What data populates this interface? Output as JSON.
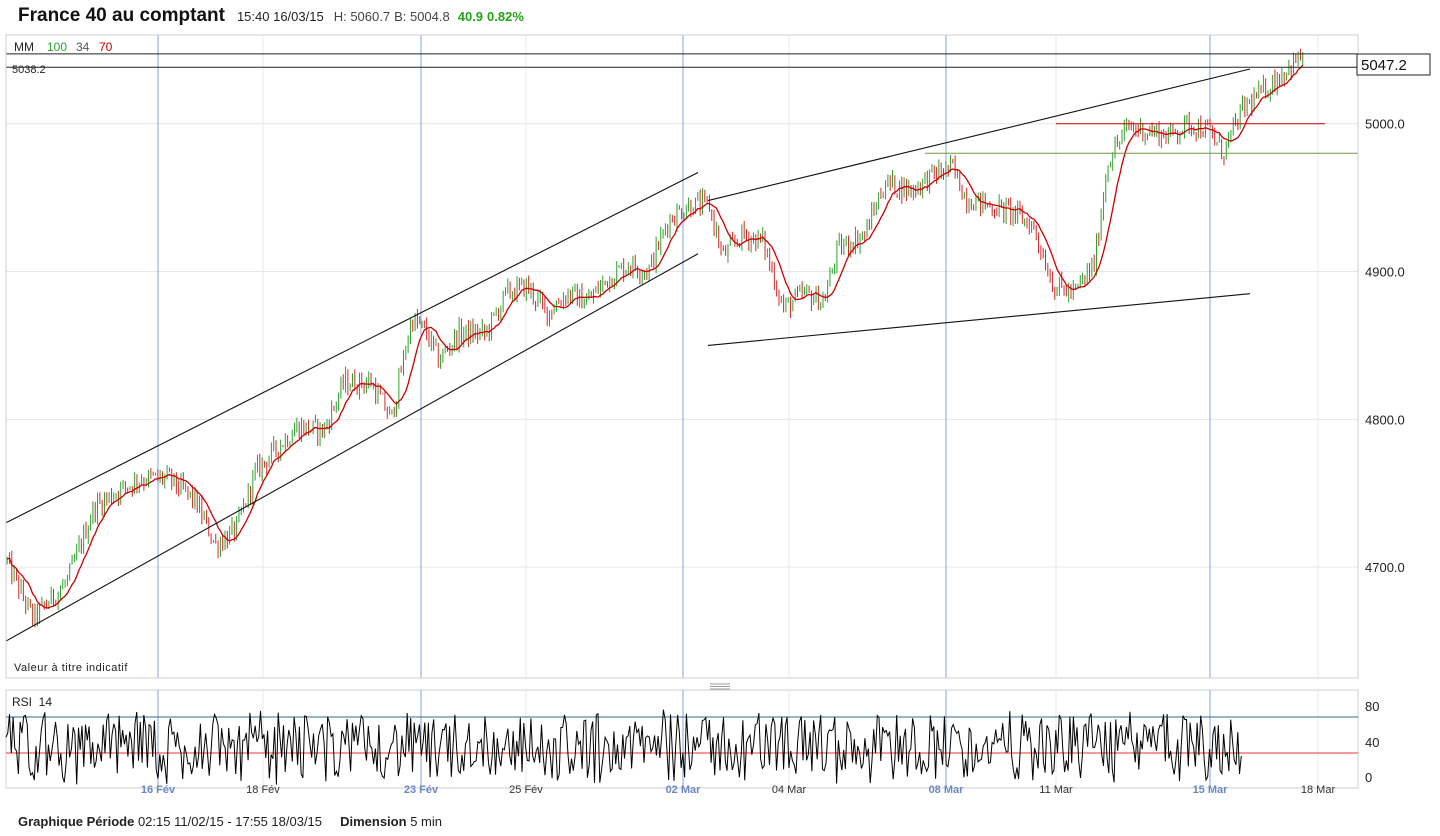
{
  "header": {
    "title": "France 40 au comptant",
    "datetime": "15:40 16/03/15",
    "high": "H: 5060.7",
    "bid": "B: 5004.8",
    "change": "40.9",
    "change_pct": "0.82%"
  },
  "legend": {
    "label": "MM",
    "p1": "100",
    "p2": "34",
    "p3": "70"
  },
  "level_labels": {
    "left_box": "5038.2",
    "right_box": "5047.2"
  },
  "watermark": "Valeur à titre indicatif",
  "rsi_label": "RSI  14",
  "footer": {
    "periode_label": "Graphique Période",
    "periode_value": "02:15 11/02/15 - 17:55 18/03/15",
    "dimension_label": "Dimension",
    "dimension_value": "5 min"
  },
  "colors": {
    "up": "#2ca02c",
    "down": "#d62728",
    "ma": "#cc0000",
    "grid_major": "#8aa4cf",
    "rsi_upper": "#2f6f8f",
    "rsi_lower": "#ee3333"
  },
  "chart_data": [
    {
      "type": "candlestick",
      "title": "France 40 au comptant",
      "y_ticks": [
        4700.0,
        4800.0,
        4900.0,
        5000.0
      ],
      "ylim": [
        4625,
        5060
      ],
      "x_ticks": [
        "16 Fév",
        "18 Fév",
        "23 Fév",
        "25 Fév",
        "02 Mar",
        "04 Mar",
        "08 Mar",
        "11 Mar",
        "15 Mar",
        "18 Mar"
      ],
      "major_x_ticks": [
        "16 Fév",
        "23 Fév",
        "02 Mar",
        "08 Mar",
        "15 Mar"
      ],
      "overlay": "moving average",
      "price_path": [
        [
          0,
          4705
        ],
        [
          0.02,
          4665
        ],
        [
          0.045,
          4690
        ],
        [
          0.065,
          4740
        ],
        [
          0.08,
          4750
        ],
        [
          0.1,
          4760
        ],
        [
          0.12,
          4760
        ],
        [
          0.14,
          4745
        ],
        [
          0.155,
          4715
        ],
        [
          0.17,
          4725
        ],
        [
          0.185,
          4765
        ],
        [
          0.2,
          4780
        ],
        [
          0.215,
          4795
        ],
        [
          0.235,
          4792
        ],
        [
          0.25,
          4825
        ],
        [
          0.27,
          4825
        ],
        [
          0.285,
          4800
        ],
        [
          0.3,
          4868
        ],
        [
          0.31,
          4860
        ],
        [
          0.32,
          4840
        ],
        [
          0.335,
          4858
        ],
        [
          0.355,
          4858
        ],
        [
          0.37,
          4885
        ],
        [
          0.385,
          4890
        ],
        [
          0.4,
          4872
        ],
        [
          0.415,
          4885
        ],
        [
          0.43,
          4880
        ],
        [
          0.445,
          4895
        ],
        [
          0.46,
          4905
        ],
        [
          0.475,
          4900
        ],
        [
          0.49,
          4935
        ],
        [
          0.505,
          4945
        ],
        [
          0.52,
          4945
        ],
        [
          0.53,
          4910
        ],
        [
          0.545,
          4925
        ],
        [
          0.56,
          4920
        ],
        [
          0.575,
          4875
        ],
        [
          0.59,
          4885
        ],
        [
          0.605,
          4880
        ],
        [
          0.615,
          4915
        ],
        [
          0.635,
          4925
        ],
        [
          0.65,
          4960
        ],
        [
          0.67,
          4955
        ],
        [
          0.685,
          4965
        ],
        [
          0.7,
          4970
        ],
        [
          0.71,
          4950
        ],
        [
          0.725,
          4945
        ],
        [
          0.745,
          4940
        ],
        [
          0.76,
          4930
        ],
        [
          0.775,
          4890
        ],
        [
          0.79,
          4885
        ],
        [
          0.805,
          4905
        ],
        [
          0.815,
          4975
        ],
        [
          0.83,
          4998
        ],
        [
          0.845,
          4995
        ],
        [
          0.86,
          4992
        ],
        [
          0.875,
          5000
        ],
        [
          0.89,
          4995
        ],
        [
          0.9,
          4980
        ],
        [
          0.915,
          5010
        ],
        [
          0.93,
          5022
        ],
        [
          0.945,
          5035
        ],
        [
          0.96,
          5047
        ]
      ],
      "levels": [
        {
          "value": 5047.2,
          "style": "black line",
          "label": "5047.2"
        },
        {
          "value": 5038.2,
          "style": "black line",
          "label": "5038.2"
        },
        {
          "value": 5000.0,
          "style": "red line"
        },
        {
          "value": 4980.0,
          "style": "green line"
        }
      ],
      "trendlines": [
        {
          "from": [
            "11/02",
            4730
          ],
          "to": [
            "02 Mar",
            4967
          ]
        },
        {
          "from": [
            "11/02",
            4650
          ],
          "to": [
            "02 Mar",
            4912
          ]
        },
        {
          "from": [
            "02 Mar",
            4948
          ],
          "to": [
            "15 Mar",
            5037
          ]
        },
        {
          "from": [
            "02 Mar",
            4850
          ],
          "to": [
            "15 Mar",
            4885
          ]
        }
      ]
    },
    {
      "type": "line",
      "title": "RSI 14",
      "y_ticks": [
        0,
        40,
        80
      ],
      "ylim": [
        0,
        100
      ],
      "reference_lines": [
        70,
        30
      ],
      "value_range": [
        10,
        88
      ]
    }
  ]
}
